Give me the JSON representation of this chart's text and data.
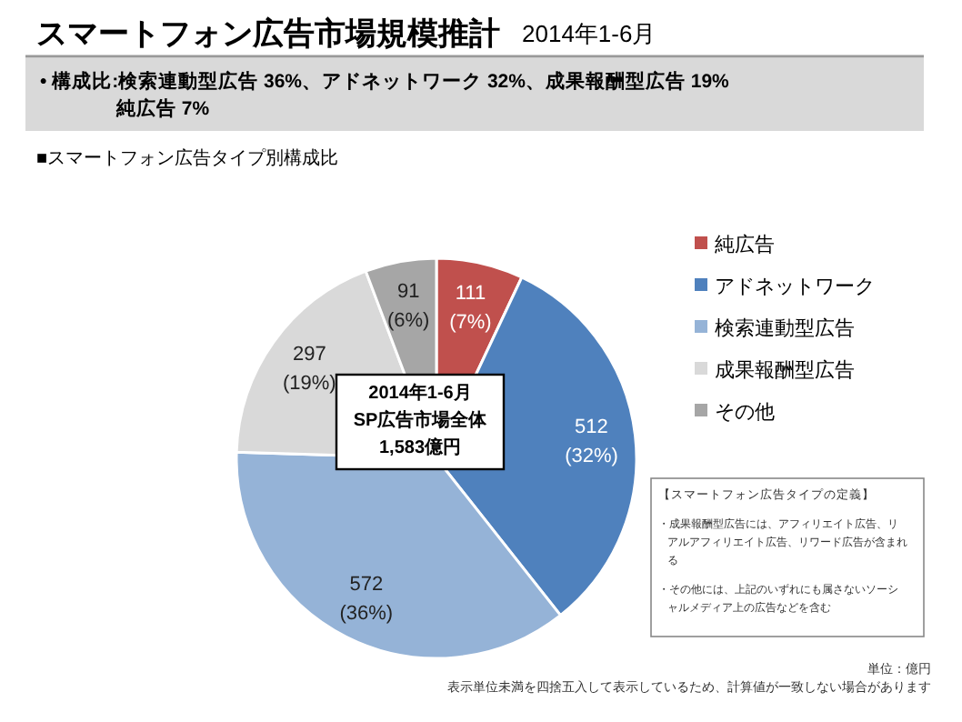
{
  "chart_data": {
    "type": "pie",
    "title": "スマートフォン広告市場規模推計",
    "subtitle": "2014年1-6月",
    "categories": [
      "純広告",
      "アドネットワーク",
      "検索連動型広告",
      "成果報酬型広告",
      "その他"
    ],
    "values": [
      111,
      512,
      572,
      297,
      91
    ],
    "colors": [
      "#c0504d",
      "#4f81bd",
      "#95b3d7",
      "#d9d9d9",
      "#a6a6a6"
    ],
    "value_labels": [
      "111\n(7%)",
      "512\n(32%)",
      "572\n(36%)",
      "297\n(19%)",
      "91\n(6%)"
    ],
    "legend": "right",
    "annotations": [
      "• 構成比:検索連動型広告 36%、アドネットワーク 32%、成果報酬型広告 19%\n純広告 7%",
      "■スマートフォン広告タイプ別構成比",
      "2014年1-6月\nSP広告市場全体\n1,583億円",
      "【スマートフォン広告タイプの定義】",
      "・成果報酬型広告には、アフィリエイト広告、リアルアフィリエイト広告、リワード広告が含まれる",
      "・その他には、上記のいずれにも属さないソーシャルメディア上の広告などを含む",
      "単位：億円",
      "表示単位未満を四捨五入して表示しているため、計算値が一致しない場合があります"
    ]
  }
}
